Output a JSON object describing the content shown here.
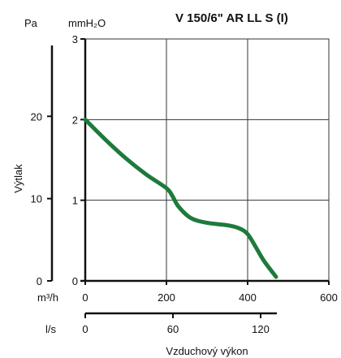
{
  "chart_data": {
    "type": "line",
    "title": "V 150/6\" AR LL S (I)",
    "xlabel": "Vzduchový výkon",
    "ylabel": "Výtlak",
    "x_unit_primary": "m³/h",
    "x_unit_secondary": "l/s",
    "y_unit_primary": "Pa",
    "y_unit_secondary": "mmH₂O",
    "xlim": [
      0,
      600
    ],
    "ylim_mmH2O": [
      0,
      3
    ],
    "ylim_Pa": [
      0,
      29.4
    ],
    "grid": true,
    "x_ticks_primary": [
      "0",
      "200",
      "400",
      "600"
    ],
    "x_ticks_primary_values": [
      0,
      200,
      400,
      600
    ],
    "x_ticks_secondary": [
      "0",
      "60",
      "120"
    ],
    "x_ticks_secondary_values": [
      0,
      216,
      432
    ],
    "y_ticks_mmH2O": [
      "0",
      "1",
      "2",
      "3"
    ],
    "y_ticks_mmH2O_values": [
      0,
      1,
      2,
      3
    ],
    "y_ticks_Pa": [
      "0",
      "10",
      "20"
    ],
    "y_ticks_Pa_values": [
      0,
      10,
      20
    ],
    "series": [
      {
        "color": "#1e7a3c",
        "x": [
          0,
          50,
          100,
          150,
          200,
          215,
          230,
          260,
          300,
          350,
          380,
          400,
          420,
          440,
          470
        ],
        "y": [
          2.0,
          1.75,
          1.52,
          1.32,
          1.15,
          1.05,
          0.92,
          0.78,
          0.72,
          0.69,
          0.65,
          0.58,
          0.42,
          0.25,
          0.05
        ]
      }
    ]
  }
}
